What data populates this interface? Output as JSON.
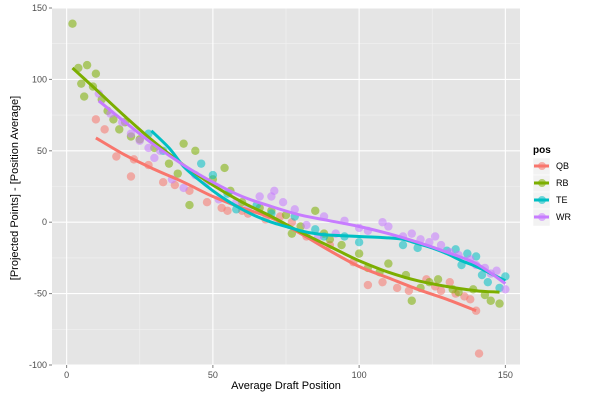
{
  "chart_data": {
    "type": "scatter",
    "xlabel": "Average Draft Position",
    "ylabel": "[Projected Points] - [Position Average]",
    "xlim": [
      -5,
      155
    ],
    "ylim": [
      -100,
      150
    ],
    "x_ticks": [
      0,
      50,
      100,
      150
    ],
    "y_ticks": [
      -100,
      -50,
      0,
      50,
      100,
      150
    ],
    "grid": true,
    "background": "#e5e5e5",
    "legend": {
      "title": "pos",
      "position": "right"
    },
    "series": [
      {
        "name": "QB",
        "color": "#f8766d",
        "points": [
          [
            10,
            72
          ],
          [
            13,
            65
          ],
          [
            17,
            46
          ],
          [
            22,
            32
          ],
          [
            23,
            44
          ],
          [
            28,
            40
          ],
          [
            33,
            28
          ],
          [
            37,
            26
          ],
          [
            42,
            22
          ],
          [
            48,
            14
          ],
          [
            53,
            10
          ],
          [
            55,
            8
          ],
          [
            60,
            8
          ],
          [
            62,
            6
          ],
          [
            68,
            2
          ],
          [
            73,
            4
          ],
          [
            77,
            0
          ],
          [
            82,
            -10
          ],
          [
            90,
            -16
          ],
          [
            98,
            -28
          ],
          [
            103,
            -44
          ],
          [
            108,
            -42
          ],
          [
            113,
            -46
          ],
          [
            117,
            -48
          ],
          [
            123,
            -40
          ],
          [
            126,
            -45
          ],
          [
            128,
            -48
          ],
          [
            131,
            -42
          ],
          [
            133,
            -50
          ],
          [
            136,
            -52
          ],
          [
            138,
            -54
          ],
          [
            140,
            -62
          ],
          [
            141,
            -92
          ]
        ],
        "trend": [
          [
            10,
            59
          ],
          [
            20,
            47
          ],
          [
            30,
            37
          ],
          [
            40,
            28
          ],
          [
            50,
            18
          ],
          [
            60,
            10
          ],
          [
            70,
            3
          ],
          [
            80,
            -8
          ],
          [
            90,
            -20
          ],
          [
            100,
            -31
          ],
          [
            110,
            -39
          ],
          [
            120,
            -47
          ],
          [
            130,
            -54
          ],
          [
            140,
            -62
          ]
        ]
      },
      {
        "name": "RB",
        "color": "#7cae00",
        "points": [
          [
            2,
            139
          ],
          [
            4,
            108
          ],
          [
            5,
            97
          ],
          [
            6,
            88
          ],
          [
            7,
            110
          ],
          [
            9,
            95
          ],
          [
            10,
            104
          ],
          [
            12,
            86
          ],
          [
            14,
            78
          ],
          [
            16,
            72
          ],
          [
            18,
            65
          ],
          [
            20,
            70
          ],
          [
            22,
            60
          ],
          [
            25,
            58
          ],
          [
            30,
            52
          ],
          [
            35,
            41
          ],
          [
            38,
            34
          ],
          [
            40,
            55
          ],
          [
            42,
            12
          ],
          [
            44,
            50
          ],
          [
            50,
            30
          ],
          [
            54,
            38
          ],
          [
            56,
            22
          ],
          [
            60,
            14
          ],
          [
            66,
            10
          ],
          [
            70,
            8
          ],
          [
            75,
            5
          ],
          [
            77,
            -8
          ],
          [
            80,
            -3
          ],
          [
            85,
            8
          ],
          [
            88,
            -8
          ],
          [
            90,
            -12
          ],
          [
            94,
            -16
          ],
          [
            100,
            -22
          ],
          [
            103,
            -32
          ],
          [
            107,
            -35
          ],
          [
            110,
            -29
          ],
          [
            116,
            -37
          ],
          [
            118,
            -55
          ],
          [
            121,
            -46
          ],
          [
            124,
            -42
          ],
          [
            127,
            -40
          ],
          [
            132,
            -47
          ],
          [
            134,
            -49
          ],
          [
            139,
            -47
          ],
          [
            143,
            -51
          ],
          [
            145,
            -55
          ],
          [
            148,
            -57
          ]
        ],
        "trend": [
          [
            2,
            108
          ],
          [
            10,
            93
          ],
          [
            20,
            74
          ],
          [
            30,
            56
          ],
          [
            40,
            40
          ],
          [
            50,
            26
          ],
          [
            60,
            14
          ],
          [
            70,
            4
          ],
          [
            80,
            -7
          ],
          [
            90,
            -17
          ],
          [
            100,
            -27
          ],
          [
            110,
            -35
          ],
          [
            120,
            -41
          ],
          [
            130,
            -45
          ],
          [
            140,
            -48
          ],
          [
            148,
            -49
          ]
        ]
      },
      {
        "name": "TE",
        "color": "#00bfc4",
        "points": [
          [
            28,
            62
          ],
          [
            33,
            50
          ],
          [
            46,
            41
          ],
          [
            50,
            33
          ],
          [
            55,
            20
          ],
          [
            58,
            9
          ],
          [
            65,
            12
          ],
          [
            70,
            6
          ],
          [
            78,
            4
          ],
          [
            85,
            -5
          ],
          [
            88,
            -10
          ],
          [
            95,
            -10
          ],
          [
            100,
            -14
          ],
          [
            115,
            -16
          ],
          [
            120,
            -18
          ],
          [
            130,
            -20
          ],
          [
            133,
            -19
          ],
          [
            135,
            -30
          ],
          [
            137,
            -22
          ],
          [
            140,
            -24
          ],
          [
            142,
            -37
          ],
          [
            144,
            -42
          ],
          [
            148,
            -46
          ],
          [
            150,
            -38
          ]
        ],
        "trend": [
          [
            29,
            64
          ],
          [
            35,
            52
          ],
          [
            40,
            39
          ],
          [
            45,
            30
          ],
          [
            50,
            22
          ],
          [
            55,
            15
          ],
          [
            60,
            9
          ],
          [
            65,
            4
          ],
          [
            70,
            0
          ],
          [
            75,
            -3
          ],
          [
            80,
            -6
          ],
          [
            85,
            -8
          ],
          [
            90,
            -9
          ],
          [
            100,
            -10
          ],
          [
            110,
            -11
          ],
          [
            115,
            -12
          ],
          [
            120,
            -15
          ],
          [
            125,
            -18
          ],
          [
            130,
            -22
          ],
          [
            135,
            -27
          ],
          [
            140,
            -31
          ],
          [
            145,
            -36
          ],
          [
            150,
            -41
          ]
        ]
      },
      {
        "name": "WR",
        "color": "#c77cff",
        "points": [
          [
            11,
            90
          ],
          [
            15,
            76
          ],
          [
            19,
            70
          ],
          [
            22,
            62
          ],
          [
            25,
            57
          ],
          [
            28,
            52
          ],
          [
            30,
            45
          ],
          [
            32,
            50
          ],
          [
            36,
            30
          ],
          [
            40,
            24
          ],
          [
            44,
            33
          ],
          [
            48,
            28
          ],
          [
            52,
            16
          ],
          [
            58,
            14
          ],
          [
            62,
            10
          ],
          [
            66,
            18
          ],
          [
            70,
            18
          ],
          [
            71,
            22
          ],
          [
            74,
            14
          ],
          [
            78,
            9
          ],
          [
            82,
            -2
          ],
          [
            86,
            -10
          ],
          [
            88,
            4
          ],
          [
            92,
            -8
          ],
          [
            95,
            1
          ],
          [
            100,
            -4
          ],
          [
            103,
            -6
          ],
          [
            108,
            0
          ],
          [
            110,
            -3
          ],
          [
            115,
            -10
          ],
          [
            118,
            -8
          ],
          [
            121,
            -12
          ],
          [
            124,
            -14
          ],
          [
            126,
            -10
          ],
          [
            128,
            -16
          ],
          [
            131,
            -21
          ],
          [
            134,
            -23
          ],
          [
            138,
            -26
          ],
          [
            140,
            -30
          ],
          [
            143,
            -32
          ],
          [
            145,
            -36
          ],
          [
            147,
            -34
          ],
          [
            150,
            -47
          ]
        ],
        "trend": [
          [
            11,
            85
          ],
          [
            20,
            70
          ],
          [
            30,
            54
          ],
          [
            40,
            40
          ],
          [
            50,
            28
          ],
          [
            60,
            18
          ],
          [
            70,
            11
          ],
          [
            80,
            5
          ],
          [
            90,
            1
          ],
          [
            100,
            -3
          ],
          [
            110,
            -8
          ],
          [
            120,
            -14
          ],
          [
            130,
            -21
          ],
          [
            140,
            -29
          ],
          [
            150,
            -43
          ]
        ]
      }
    ]
  }
}
